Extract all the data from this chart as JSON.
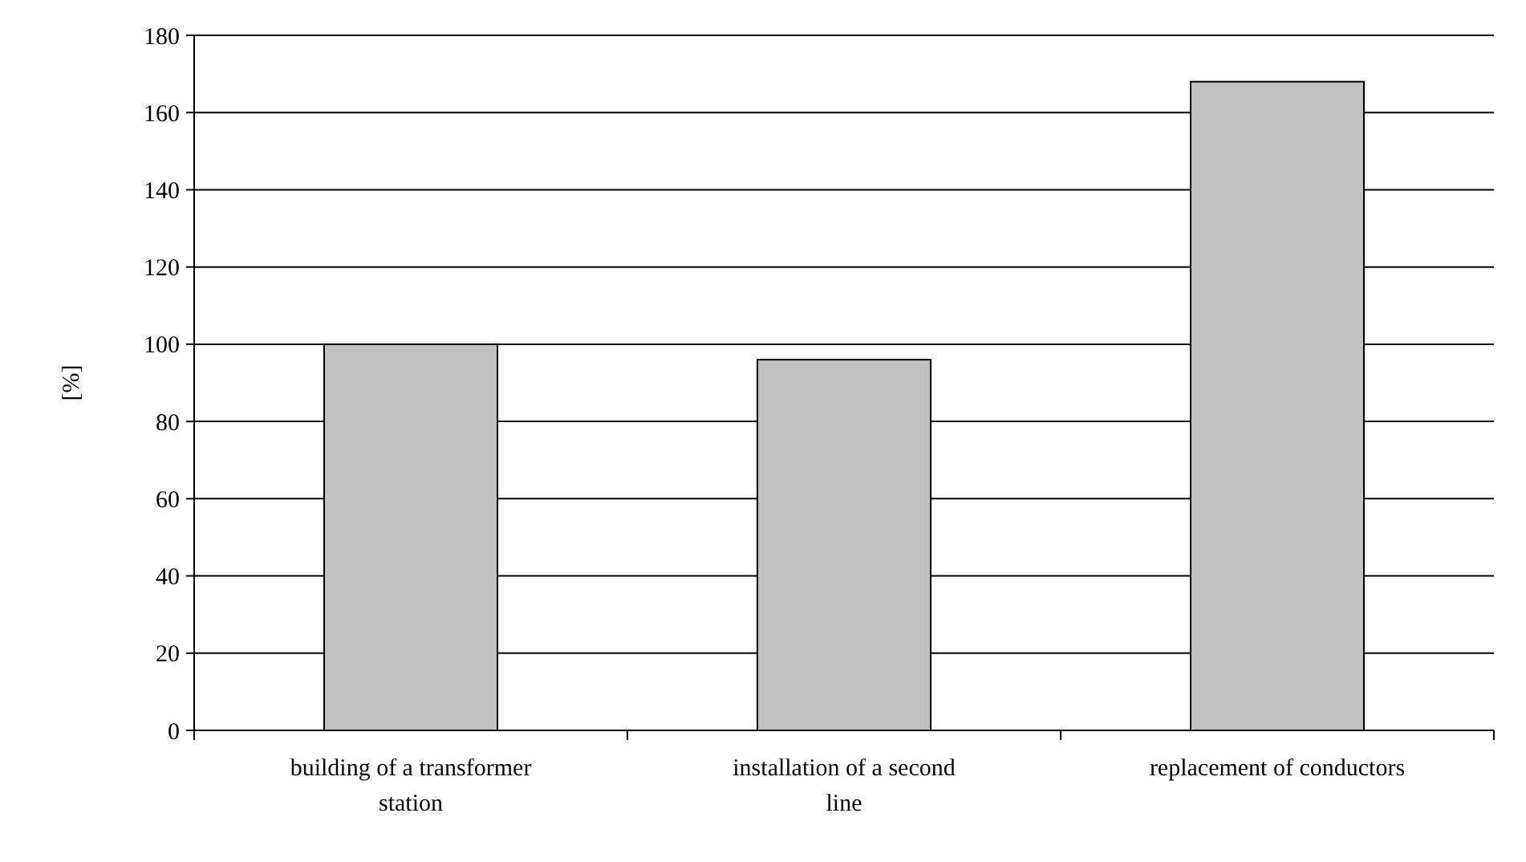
{
  "chart_data": {
    "type": "bar",
    "ylabel": "[%]",
    "categories": [
      "building of a transformer station",
      "installation of a second line",
      "replacement of conductors"
    ],
    "values": [
      100,
      96,
      168
    ],
    "color": "#c0c0c0",
    "ylim": [
      0,
      180
    ],
    "yticks": [
      0,
      20,
      40,
      60,
      80,
      100,
      120,
      140,
      160,
      180
    ],
    "grid": "y"
  }
}
